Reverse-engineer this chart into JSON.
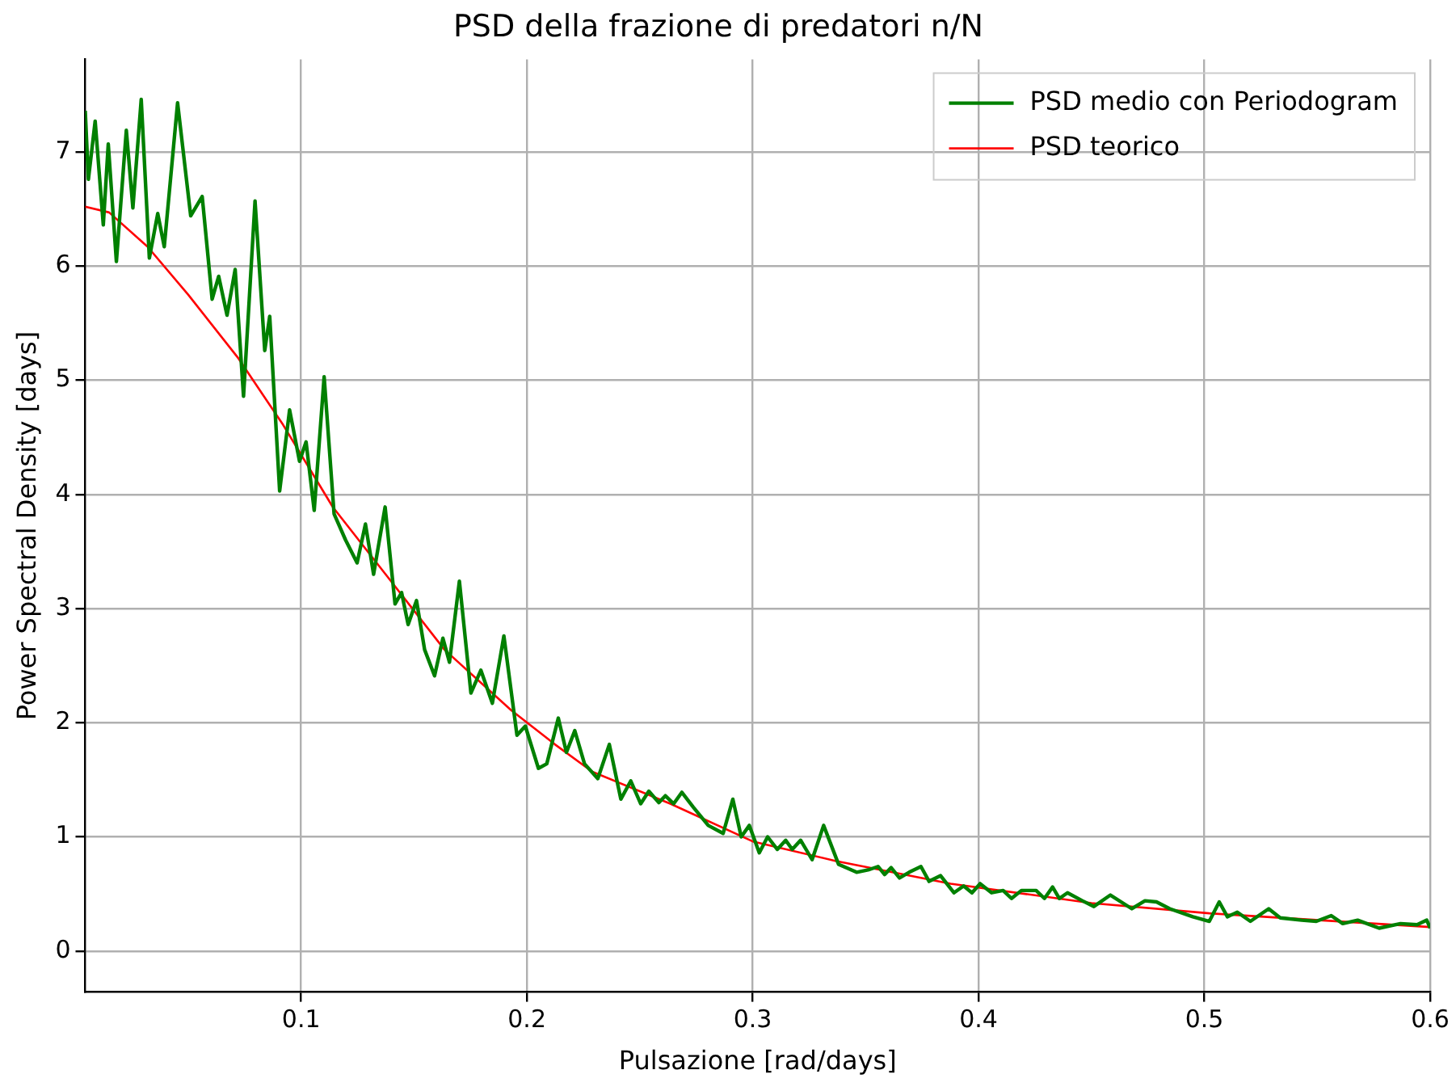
{
  "chart_data": {
    "type": "line",
    "title": "PSD della frazione di predatori n/N",
    "xlabel": "Pulsazione [rad/days]",
    "ylabel": "Power Spectral Density [days]",
    "xlim": [
      0.0044,
      0.6
    ],
    "xticks": [
      0.1,
      0.2,
      0.3,
      0.4,
      0.5,
      0.6
    ],
    "ylim": [
      -0.36,
      7.81
    ],
    "yticks": [
      0,
      1,
      2,
      3,
      4,
      5,
      6,
      7
    ],
    "grid": true,
    "legend": "top right",
    "marker": "none",
    "line_style": "solid",
    "series": [
      {
        "name": "PSD medio con Periodogram",
        "color": "#008000",
        "x": [
          0.0044,
          0.0058,
          0.0088,
          0.0124,
          0.0146,
          0.0182,
          0.0226,
          0.0255,
          0.0292,
          0.0328,
          0.0365,
          0.0394,
          0.0453,
          0.0511,
          0.0562,
          0.0606,
          0.0635,
          0.0672,
          0.0708,
          0.0745,
          0.0796,
          0.0839,
          0.0861,
          0.0905,
          0.0949,
          0.0993,
          0.1022,
          0.1058,
          0.1102,
          0.1146,
          0.1197,
          0.1248,
          0.1285,
          0.1321,
          0.1372,
          0.1416,
          0.1445,
          0.1474,
          0.1511,
          0.1547,
          0.1591,
          0.1628,
          0.1657,
          0.1701,
          0.1752,
          0.1796,
          0.1847,
          0.1898,
          0.1956,
          0.1993,
          0.2051,
          0.2088,
          0.2139,
          0.2175,
          0.2212,
          0.2255,
          0.2314,
          0.2365,
          0.2416,
          0.246,
          0.2504,
          0.254,
          0.2584,
          0.2613,
          0.265,
          0.2686,
          0.2737,
          0.2803,
          0.2869,
          0.2912,
          0.2949,
          0.2985,
          0.3029,
          0.3066,
          0.3109,
          0.3146,
          0.3175,
          0.3212,
          0.3263,
          0.3314,
          0.338,
          0.346,
          0.3511,
          0.3555,
          0.3584,
          0.3613,
          0.365,
          0.3693,
          0.3745,
          0.3781,
          0.3832,
          0.3891,
          0.3934,
          0.3971,
          0.4007,
          0.4058,
          0.4109,
          0.4146,
          0.419,
          0.4255,
          0.4292,
          0.4328,
          0.4358,
          0.4394,
          0.446,
          0.4511,
          0.4584,
          0.4679,
          0.4737,
          0.4788,
          0.4847,
          0.4949,
          0.5022,
          0.5066,
          0.5102,
          0.5146,
          0.5204,
          0.5285,
          0.5336,
          0.5431,
          0.5496,
          0.5562,
          0.5613,
          0.5679,
          0.5774,
          0.5869,
          0.5942,
          0.5985,
          0.6
        ],
        "values": [
          7.36,
          6.76,
          7.27,
          6.36,
          7.07,
          6.04,
          7.19,
          6.51,
          7.46,
          6.07,
          6.46,
          6.17,
          7.43,
          6.44,
          6.61,
          5.71,
          5.91,
          5.57,
          5.97,
          4.86,
          6.57,
          5.26,
          5.56,
          4.03,
          4.74,
          4.29,
          4.46,
          3.86,
          5.03,
          3.83,
          3.6,
          3.4,
          3.74,
          3.3,
          3.89,
          3.04,
          3.14,
          2.86,
          3.07,
          2.64,
          2.41,
          2.74,
          2.53,
          3.24,
          2.26,
          2.46,
          2.17,
          2.76,
          1.89,
          1.97,
          1.6,
          1.64,
          2.04,
          1.74,
          1.93,
          1.64,
          1.51,
          1.81,
          1.33,
          1.49,
          1.29,
          1.4,
          1.3,
          1.36,
          1.29,
          1.39,
          1.26,
          1.1,
          1.03,
          1.33,
          1.0,
          1.1,
          0.86,
          1.0,
          0.89,
          0.97,
          0.89,
          0.97,
          0.8,
          1.1,
          0.76,
          0.69,
          0.71,
          0.74,
          0.67,
          0.73,
          0.64,
          0.69,
          0.74,
          0.61,
          0.66,
          0.51,
          0.57,
          0.51,
          0.59,
          0.51,
          0.53,
          0.46,
          0.53,
          0.53,
          0.46,
          0.56,
          0.46,
          0.51,
          0.44,
          0.39,
          0.49,
          0.37,
          0.44,
          0.43,
          0.37,
          0.3,
          0.26,
          0.43,
          0.3,
          0.34,
          0.26,
          0.37,
          0.29,
          0.27,
          0.26,
          0.31,
          0.24,
          0.27,
          0.2,
          0.24,
          0.23,
          0.27,
          0.2
        ]
      },
      {
        "name": "PSD teorico",
        "color": "#ff0000",
        "x": [
          0.0044,
          0.015,
          0.032,
          0.05,
          0.0723,
          0.092,
          0.114,
          0.139,
          0.1635,
          0.193,
          0.2124,
          0.229,
          0.2635,
          0.3,
          0.3365,
          0.3876,
          0.45,
          0.5022,
          0.6
        ],
        "values": [
          6.52,
          6.47,
          6.17,
          5.75,
          5.19,
          4.61,
          3.89,
          3.26,
          2.64,
          2.11,
          1.81,
          1.57,
          1.29,
          0.96,
          0.79,
          0.59,
          0.42,
          0.33,
          0.21
        ]
      }
    ]
  }
}
